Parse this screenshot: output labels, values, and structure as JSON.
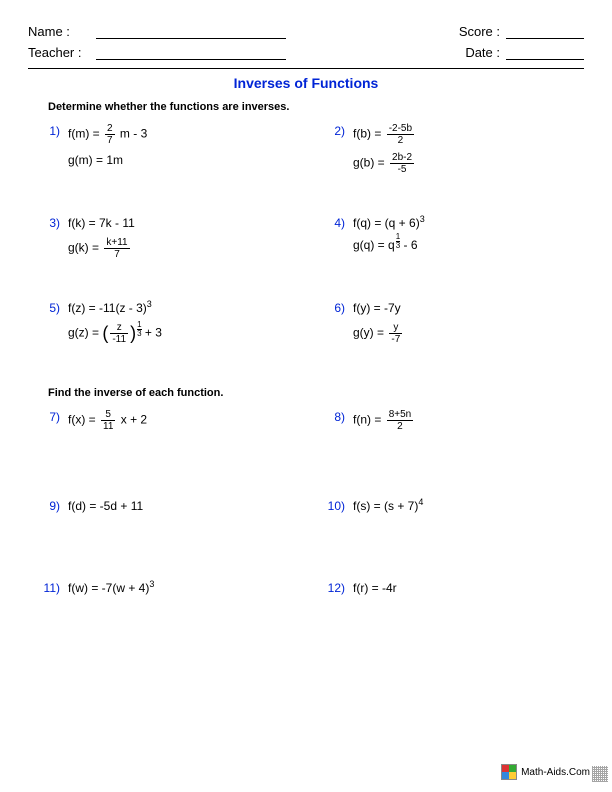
{
  "header": {
    "name_label": "Name :",
    "teacher_label": "Teacher :",
    "score_label": "Score :",
    "date_label": "Date :"
  },
  "title": "Inverses of Functions",
  "section1": {
    "instruction": "Determine whether the functions are inverses.",
    "problems": [
      {
        "num": "1)",
        "f_lhs": "f(m) =",
        "f_frac_n": "2",
        "f_frac_d": "7",
        "f_tail": " m - 3",
        "g": "g(m) = 1m"
      },
      {
        "num": "2)",
        "f_lhs": "f(b) =",
        "f_frac_n": "-2-5b",
        "f_frac_d": "2",
        "g_lhs": "g(b) =",
        "g_frac_n": "2b-2",
        "g_frac_d": "-5"
      },
      {
        "num": "3)",
        "f": "f(k) = 7k - 11",
        "g_lhs": "g(k) =",
        "g_frac_n": "k+11",
        "g_frac_d": "7"
      },
      {
        "num": "4)",
        "f": "f(q) = (q + 6)",
        "f_sup": "3",
        "g_pre": "g(q) = q",
        "g_supfrac_n": "1",
        "g_supfrac_d": "3",
        "g_tail": " - 6"
      },
      {
        "num": "5)",
        "f": "f(z) = -11(z - 3)",
        "f_sup": "3",
        "g_pre": "g(z) = ",
        "g_paren_frac_n": "z",
        "g_paren_frac_d": "-11",
        "g_supfrac_n": "1",
        "g_supfrac_d": "3",
        "g_tail": " + 3"
      },
      {
        "num": "6)",
        "f": "f(y) = -7y",
        "g_lhs": "g(y) =",
        "g_frac_n": "y",
        "g_frac_d": "-7"
      }
    ]
  },
  "section2": {
    "instruction": "Find the inverse of each function.",
    "problems": [
      {
        "num": "7)",
        "lhs": "f(x) =",
        "frac_n": "5",
        "frac_d": "11",
        "tail": " x + 2"
      },
      {
        "num": "8)",
        "lhs": "f(n) =",
        "frac_n": "8+5n",
        "frac_d": "2"
      },
      {
        "num": "9)",
        "body": "f(d) = -5d + 11"
      },
      {
        "num": "10)",
        "body": "f(s) = (s + 7)",
        "sup": "4"
      },
      {
        "num": "11)",
        "body": "f(w) = -7(w + 4)",
        "sup": "3"
      },
      {
        "num": "12)",
        "body": "f(r) = -4r"
      }
    ]
  },
  "footer": {
    "site": "Math-Aids.Com"
  },
  "colors": {
    "accent": "#0024d6"
  }
}
